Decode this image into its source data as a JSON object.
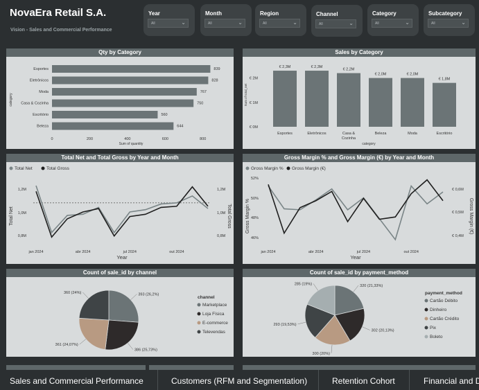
{
  "header": {
    "title": "NovaEra Retail S.A.",
    "subtitle": "Vision - Sales and Commercial Performance"
  },
  "slicers": [
    {
      "label": "Year",
      "value": "All"
    },
    {
      "label": "Month",
      "value": "All"
    },
    {
      "label": "Region",
      "value": "All"
    },
    {
      "label": "Channel",
      "value": "All"
    },
    {
      "label": "Category",
      "value": "All"
    },
    {
      "label": "Subcategory",
      "value": "All"
    }
  ],
  "colors": {
    "background": "#2b2f31",
    "panel": "#d8dbdc",
    "title_bar": "#5e6769",
    "bar": "#6b7476",
    "dark_line": "#1f1f1f",
    "gray_line": "#7a8587",
    "pie_marketplace": "#6b7476",
    "pie_fisica": "#2e2a2a",
    "pie_ecommerce": "#b89a82",
    "pie_televendas": "#3f4446"
  },
  "chart_data": [
    {
      "type": "bar",
      "title": "Qty by Category",
      "orientation": "horizontal",
      "categories": [
        "Esportes",
        "Eletrônicos",
        "Moda",
        "Casa & Cozinha",
        "Escritório",
        "Beleza"
      ],
      "values": [
        839,
        828,
        767,
        750,
        560,
        644
      ],
      "value_labels": [
        "839",
        "828",
        "767",
        "750",
        "560",
        "644"
      ],
      "xlabel": "Sum of quantity",
      "ylabel": "category",
      "xticks": [
        "0",
        "200",
        "400",
        "600",
        "800"
      ],
      "xlim": [
        0,
        900
      ]
    },
    {
      "type": "bar",
      "title": "Sales by Category",
      "categories": [
        "Esportes",
        "Eletrônicos",
        "Casa & Cozinha",
        "Beleza",
        "Moda",
        "Escritório"
      ],
      "values": [
        2.3,
        2.3,
        2.2,
        2.0,
        2.0,
        1.8
      ],
      "value_labels": [
        "€ 2,3M",
        "€ 2,3M",
        "€ 2,2M",
        "€ 2,0M",
        "€ 2,0M",
        "€ 1,8M"
      ],
      "xlabel": "category",
      "ylabel": "Sum of total_net",
      "yticks": [
        "€ 2M",
        "€ 1M",
        "€ 0M"
      ],
      "ylim": [
        0,
        2.5
      ]
    },
    {
      "type": "line",
      "title": "Total Net and Total Gross by Year and Month",
      "xlabel": "Year",
      "ylabel": "Total Net",
      "ylabel_right": "Total Gross",
      "xticks": [
        "jan 2024",
        "abr 2024",
        "jul 2024",
        "out 2024"
      ],
      "yticks_left": [
        "1,2M",
        "1,0M",
        "0,8M"
      ],
      "yticks_right": [
        "1,2M",
        "1,0M",
        "0,8M"
      ],
      "ylim": [
        0.75,
        1.3
      ],
      "legend": "top-left",
      "series": [
        {
          "name": "Total Net",
          "values": [
            1.23,
            0.82,
            0.97,
            0.98,
            1.04,
            0.82,
            1.0,
            1.02,
            1.07,
            1.08,
            1.14,
            1.03
          ]
        },
        {
          "name": "Total Gross",
          "values": [
            1.18,
            0.78,
            0.94,
            1.0,
            1.03,
            0.79,
            0.96,
            0.98,
            1.04,
            1.05,
            1.22,
            1.05
          ]
        }
      ],
      "reference_line": 1.08
    },
    {
      "type": "line",
      "title": "Gross Margin % and Gross Margin (€) by Year and Month",
      "xlabel": "Year",
      "ylabel": "Gross Margin %",
      "ylabel_right": "Gross Margin (€)",
      "xticks": [
        "jan 2024",
        "abr 2024",
        "jul 2024",
        "out 2024"
      ],
      "yticks_left": [
        "52%",
        "50%",
        "48%",
        "46%"
      ],
      "yticks_right": [
        "€ 0,6M",
        "€ 0,5M",
        "€ 0,4M"
      ],
      "legend": "top-left",
      "series": [
        {
          "name": "Gross Margin %",
          "values": [
            51.2,
            48.9,
            48.8,
            49.8,
            50.9,
            48.8,
            50.0,
            47.9,
            45.8,
            51.2,
            49.4,
            50.6
          ]
        },
        {
          "name": "Gross Margin (€)",
          "values": [
            0.62,
            0.41,
            0.52,
            0.55,
            0.59,
            0.46,
            0.56,
            0.47,
            0.48,
            0.58,
            0.64,
            0.55
          ]
        }
      ]
    },
    {
      "type": "pie",
      "title": "Count of sale_id by channel",
      "legend_title": "channel",
      "labels": [
        "Marketplace",
        "Loja Física",
        "E-commerce",
        "Televendas"
      ],
      "values": [
        393,
        386,
        361,
        360
      ],
      "value_labels": [
        "393 (26,2%)",
        "386 (25,73%)",
        "361 (24,07%)",
        "360 (24%)"
      ]
    },
    {
      "type": "pie",
      "title": "Count of sale_id by payment_method",
      "legend_title": "payment_method",
      "labels": [
        "Cartão Débito",
        "Dinheiro",
        "Cartão Crédito",
        "Pix",
        "Boleto"
      ],
      "values": [
        320,
        302,
        300,
        293,
        285
      ],
      "value_labels": [
        "320 (21,33%)",
        "302 (20,13%)",
        "300 (20%)",
        "293 (19,53%)",
        "285 (19%)"
      ]
    }
  ],
  "tabs": [
    {
      "label": "Sales and Commercial Performance",
      "active": true
    },
    {
      "label": "Customers (RFM and Segmentation)",
      "active": false
    },
    {
      "label": "Retention Cohort",
      "active": false
    },
    {
      "label": "Financial and D",
      "active": false
    }
  ]
}
